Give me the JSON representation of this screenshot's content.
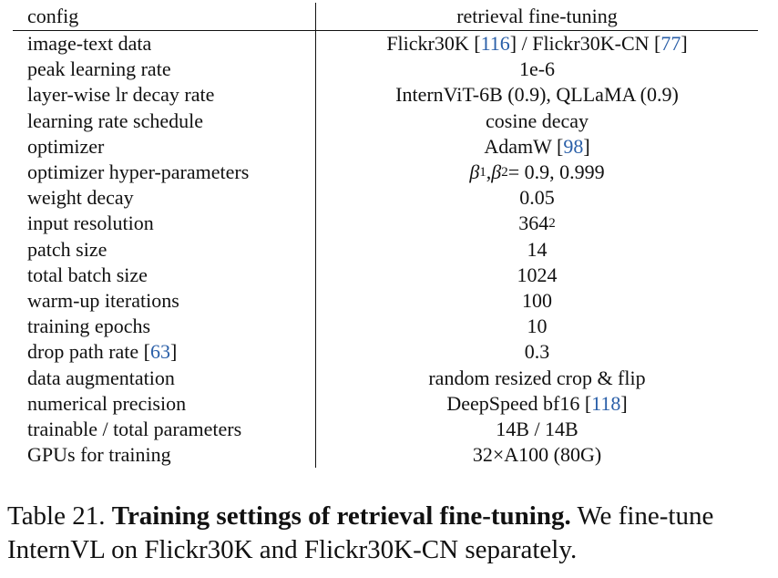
{
  "table": {
    "header": {
      "config": "config",
      "value": "retrieval fine-tuning"
    },
    "rows": [
      {
        "config": "image-text data",
        "value_pre": "Flickr30K [",
        "ref1": "116",
        "value_mid": "] / Flickr30K-CN [",
        "ref2": "77",
        "value_post": "]"
      },
      {
        "config": "peak learning rate",
        "value": "1e-6"
      },
      {
        "config": "layer-wise lr decay rate",
        "value": "InternViT-6B (0.9), QLLaMA (0.9)"
      },
      {
        "config": "learning rate schedule",
        "value": "cosine decay"
      },
      {
        "config": "optimizer",
        "value_pre": "AdamW [",
        "ref1": "98",
        "value_post": "]"
      },
      {
        "config": "optimizer hyper-parameters",
        "beta": "β",
        "sub1": "1",
        "sep": ", ",
        "sub2": "2",
        "value_post": " = 0.9, 0.999"
      },
      {
        "config": "weight decay",
        "value": "0.05"
      },
      {
        "config": "input resolution",
        "value": "364",
        "sup": "2"
      },
      {
        "config": "patch size",
        "value": "14"
      },
      {
        "config": "total batch size",
        "value": "1024"
      },
      {
        "config": "warm-up iterations",
        "value": "100"
      },
      {
        "config": "training epochs",
        "value": "10"
      },
      {
        "config_pre": "drop path rate [",
        "config_ref": "63",
        "config_post": "]",
        "value": "0.3"
      },
      {
        "config": "data augmentation",
        "value": "random resized crop & flip"
      },
      {
        "config": "numerical precision",
        "value_pre": "DeepSpeed bf16 [",
        "ref1": "118",
        "value_post": "]"
      },
      {
        "config": "trainable / total parameters",
        "value": "14B / 14B"
      },
      {
        "config": "GPUs for training",
        "value": "32×A100 (80G)"
      }
    ]
  },
  "caption": {
    "label": "Table 21.",
    "bold": "Training settings of retrieval fine-tuning.",
    "text": "We fine-tune InternVL on Flickr30K and Flickr30K-CN separately."
  }
}
